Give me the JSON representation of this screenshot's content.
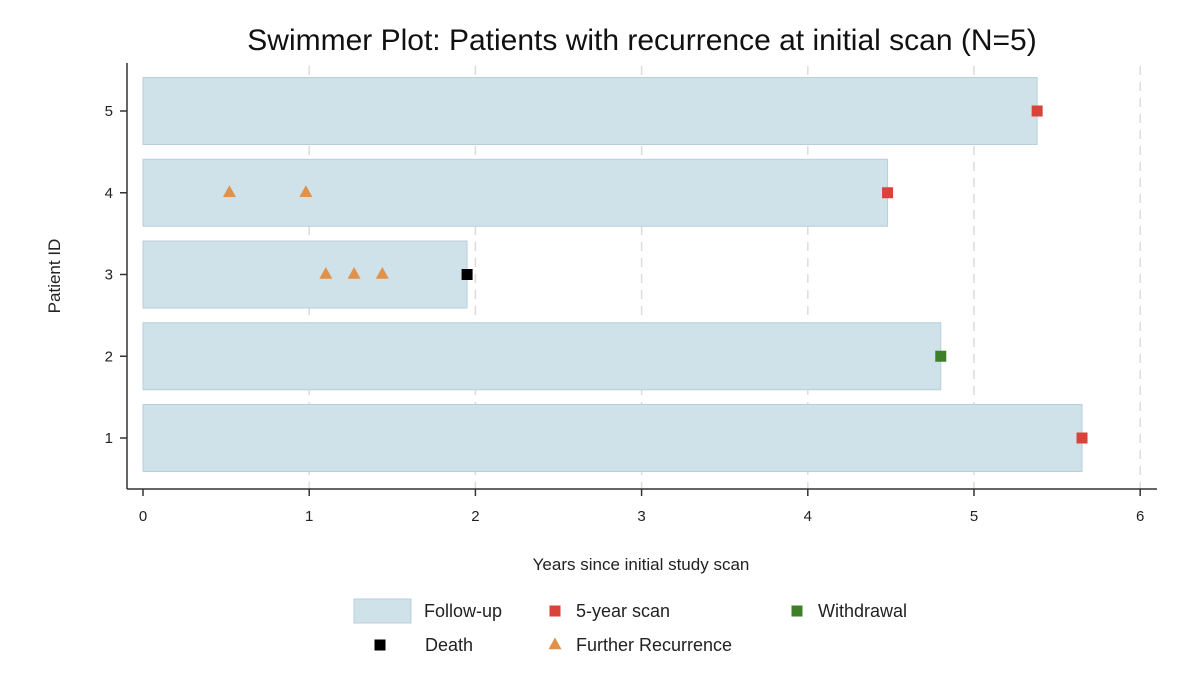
{
  "chart_data": {
    "type": "swimmer",
    "title": "Swimmer Plot: Patients with recurrence at initial scan (N=5)",
    "xlabel": "Years since initial study scan",
    "ylabel": "Patient ID",
    "xlim": [
      0,
      6
    ],
    "ylim": [
      0.5,
      5.5
    ],
    "x_ticks": [
      "0",
      "1",
      "2",
      "3",
      "4",
      "5",
      "6"
    ],
    "y_ticks": [
      "1",
      "2",
      "3",
      "4",
      "5"
    ],
    "grid": "vertical dashed",
    "legend_position": "bottom",
    "patients": [
      {
        "id": 1,
        "followup": 5.65,
        "end_event": "5-year scan",
        "recurrences": []
      },
      {
        "id": 2,
        "followup": 4.8,
        "end_event": "Withdrawal",
        "recurrences": []
      },
      {
        "id": 3,
        "followup": 1.95,
        "end_event": "Death",
        "recurrences": [
          1.1,
          1.27,
          1.44
        ]
      },
      {
        "id": 4,
        "followup": 4.48,
        "end_event": "5-year scan",
        "recurrences": [
          0.52,
          0.98
        ]
      },
      {
        "id": 5,
        "followup": 5.38,
        "end_event": "5-year scan",
        "recurrences": []
      }
    ],
    "legend": [
      {
        "label": "Follow-up",
        "marker": "bar",
        "color": "#cfe1e9"
      },
      {
        "label": "5-year scan",
        "marker": "square",
        "color": "#d9433a"
      },
      {
        "label": "Withdrawal",
        "marker": "square",
        "color": "#3f7f2a"
      },
      {
        "label": "Death",
        "marker": "square",
        "color": "#000000"
      },
      {
        "label": "Further Recurrence",
        "marker": "triangle",
        "color": "#e0914a"
      }
    ],
    "colors": {
      "bar_fill": "#cfe1e9",
      "bar_stroke": "#b7cfdb",
      "five_year": "#d9433a",
      "withdrawal": "#3f7f2a",
      "death": "#000000",
      "recurrence": "#e0914a"
    }
  }
}
